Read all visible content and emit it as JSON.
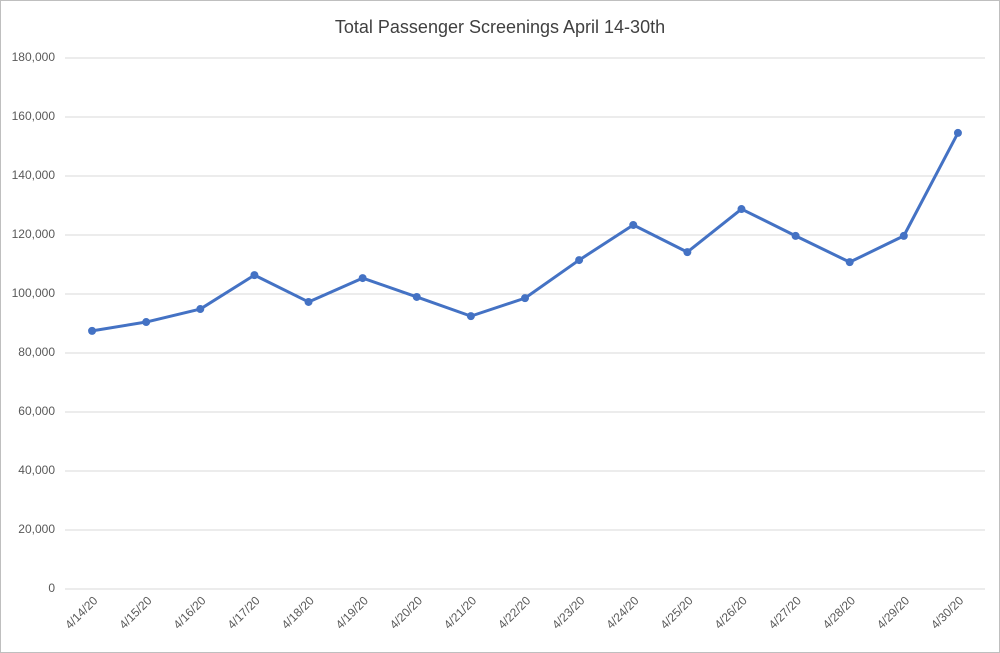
{
  "chart_data": {
    "type": "line",
    "title": "Total Passenger Screenings April 14-30th",
    "categories": [
      "4/14/20",
      "4/15/20",
      "4/16/20",
      "4/17/20",
      "4/18/20",
      "4/19/20",
      "4/20/20",
      "4/21/20",
      "4/22/20",
      "4/23/20",
      "4/24/20",
      "4/25/20",
      "4/26/20",
      "4/27/20",
      "4/28/20",
      "4/29/20",
      "4/30/20"
    ],
    "series": [
      {
        "color": "#4472c4",
        "values": [
          87500,
          90500,
          94900,
          106400,
          97300,
          105400,
          99000,
          92500,
          98600,
          111500,
          123400,
          114200,
          128800,
          119700,
          110800,
          119700,
          154600
        ]
      }
    ],
    "ylim": [
      0,
      180000
    ],
    "yticks": [
      0,
      {
        "value": 20000,
        "label": "20,000"
      },
      {
        "value": 40000,
        "label": "40,000"
      },
      {
        "value": 60000,
        "label": "60,000"
      },
      {
        "value": 80000,
        "label": "80,000"
      },
      {
        "value": 100000,
        "label": "100,000"
      },
      {
        "value": 120000,
        "label": "120,000"
      },
      {
        "value": 140000,
        "label": "140,000"
      },
      {
        "value": 160000,
        "label": "160,000"
      },
      {
        "value": 180000,
        "label": "180,000"
      }
    ],
    "grid": true
  }
}
